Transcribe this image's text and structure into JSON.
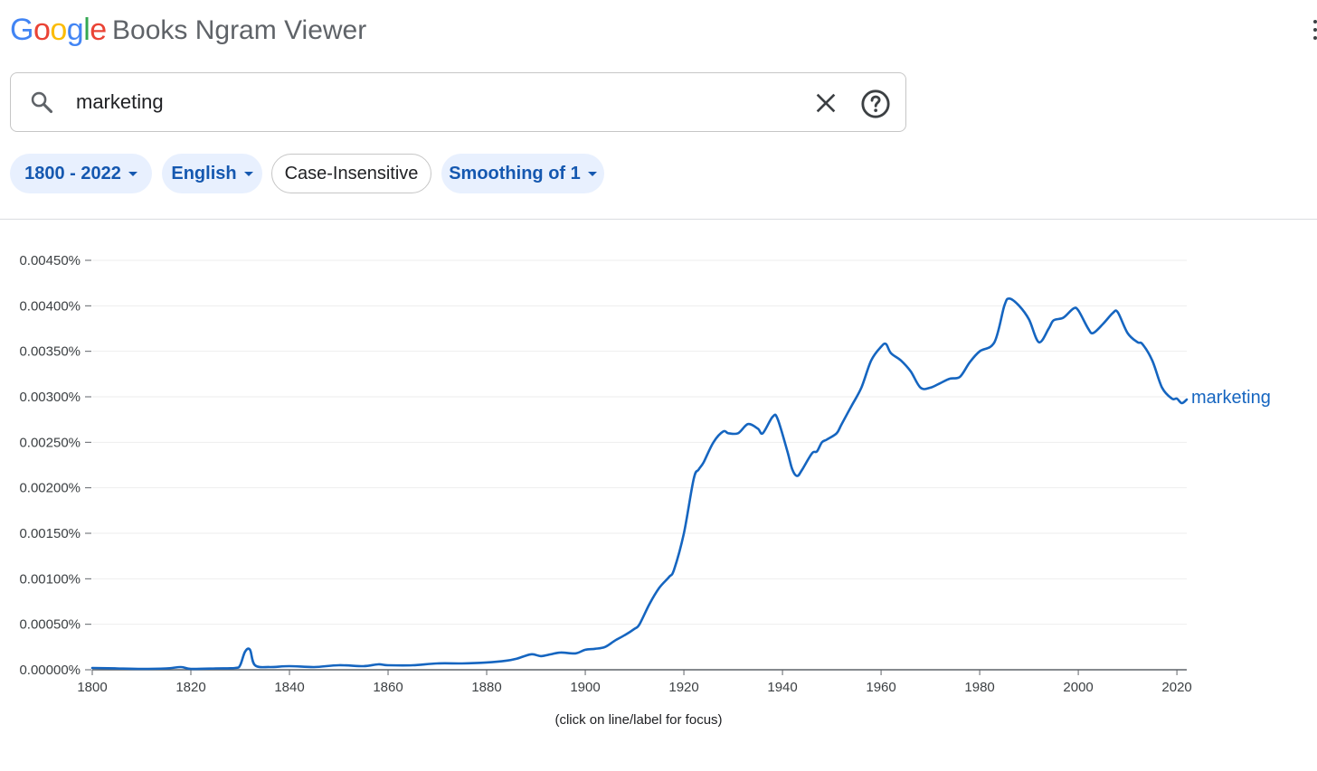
{
  "header": {
    "logo": [
      "G",
      "o",
      "o",
      "g",
      "l",
      "e"
    ],
    "logo_colors": [
      "#4285F4",
      "#EA4335",
      "#FBBC05",
      "#4285F4",
      "#34A853",
      "#EA4335"
    ],
    "product": "Books Ngram Viewer"
  },
  "search": {
    "value": "marketing",
    "placeholder": "",
    "icons": {
      "search": "search-icon",
      "clear": "close-icon",
      "help": "help-icon"
    }
  },
  "filters": {
    "years": "1800 - 2022",
    "language": "English",
    "case": "Case-Insensitive",
    "smoothing": "Smoothing of 1"
  },
  "colors": {
    "accent": "#1565c0",
    "chip_bg": "#e8f0fe",
    "chip_text": "#1558b0"
  },
  "chart_data": {
    "type": "line",
    "title": "",
    "xlabel": "",
    "ylabel": "",
    "xlim": [
      1800,
      2022
    ],
    "ylim": [
      0,
      0.0045
    ],
    "grid": true,
    "x_ticks": [
      "1800",
      "1820",
      "1840",
      "1860",
      "1880",
      "1900",
      "1920",
      "1940",
      "1960",
      "1980",
      "2000",
      "2020"
    ],
    "y_ticks": [
      "0.00000%",
      "0.00050%",
      "0.00100%",
      "0.00150%",
      "0.00200%",
      "0.00250%",
      "0.00300%",
      "0.00350%",
      "0.00400%",
      "0.00450%"
    ],
    "series": [
      {
        "name": "marketing",
        "color": "#1565c0",
        "points": [
          [
            1800,
            2e-05
          ],
          [
            1805,
            1.5e-05
          ],
          [
            1810,
            1e-05
          ],
          [
            1815,
            1.5e-05
          ],
          [
            1818,
            3e-05
          ],
          [
            1820,
            1e-05
          ],
          [
            1825,
            1.5e-05
          ],
          [
            1829,
            2e-05
          ],
          [
            1830,
            5e-05
          ],
          [
            1831,
            0.0002
          ],
          [
            1832,
            0.00022
          ],
          [
            1833,
            5e-05
          ],
          [
            1836,
            3e-05
          ],
          [
            1840,
            4e-05
          ],
          [
            1845,
            3e-05
          ],
          [
            1850,
            5e-05
          ],
          [
            1855,
            4e-05
          ],
          [
            1858,
            6e-05
          ],
          [
            1860,
            5e-05
          ],
          [
            1865,
            5e-05
          ],
          [
            1870,
            7e-05
          ],
          [
            1875,
            7e-05
          ],
          [
            1880,
            8e-05
          ],
          [
            1884,
            0.0001
          ],
          [
            1886,
            0.00012
          ],
          [
            1889,
            0.00017
          ],
          [
            1891,
            0.00015
          ],
          [
            1893,
            0.00017
          ],
          [
            1895,
            0.00019
          ],
          [
            1898,
            0.00018
          ],
          [
            1900,
            0.00022
          ],
          [
            1902,
            0.00023
          ],
          [
            1904,
            0.00025
          ],
          [
            1906,
            0.00032
          ],
          [
            1908,
            0.00038
          ],
          [
            1910,
            0.00045
          ],
          [
            1911,
            0.0005
          ],
          [
            1913,
            0.00072
          ],
          [
            1915,
            0.0009
          ],
          [
            1917,
            0.00102
          ],
          [
            1918,
            0.0011
          ],
          [
            1920,
            0.0015
          ],
          [
            1922,
            0.0021
          ],
          [
            1923,
            0.0022
          ],
          [
            1924,
            0.00228
          ],
          [
            1926,
            0.0025
          ],
          [
            1928,
            0.00262
          ],
          [
            1929,
            0.0026
          ],
          [
            1931,
            0.0026
          ],
          [
            1933,
            0.0027
          ],
          [
            1935,
            0.00265
          ],
          [
            1936,
            0.0026
          ],
          [
            1938,
            0.00278
          ],
          [
            1939,
            0.00276
          ],
          [
            1941,
            0.0024
          ],
          [
            1942,
            0.0022
          ],
          [
            1943,
            0.00213
          ],
          [
            1944,
            0.0022
          ],
          [
            1946,
            0.00238
          ],
          [
            1947,
            0.0024
          ],
          [
            1948,
            0.0025
          ],
          [
            1949,
            0.00253
          ],
          [
            1951,
            0.0026
          ],
          [
            1952,
            0.0027
          ],
          [
            1954,
            0.0029
          ],
          [
            1956,
            0.0031
          ],
          [
            1958,
            0.0034
          ],
          [
            1960,
            0.00355
          ],
          [
            1961,
            0.00358
          ],
          [
            1962,
            0.00348
          ],
          [
            1964,
            0.0034
          ],
          [
            1966,
            0.00328
          ],
          [
            1968,
            0.0031
          ],
          [
            1970,
            0.0031
          ],
          [
            1972,
            0.00315
          ],
          [
            1974,
            0.0032
          ],
          [
            1976,
            0.00322
          ],
          [
            1978,
            0.00338
          ],
          [
            1980,
            0.0035
          ],
          [
            1983,
            0.0036
          ],
          [
            1985,
            0.004
          ],
          [
            1986,
            0.00408
          ],
          [
            1988,
            0.004
          ],
          [
            1990,
            0.00385
          ],
          [
            1992,
            0.0036
          ],
          [
            1994,
            0.00375
          ],
          [
            1995,
            0.00384
          ],
          [
            1997,
            0.00387
          ],
          [
            1999,
            0.00397
          ],
          [
            2000,
            0.00395
          ],
          [
            2002,
            0.00375
          ],
          [
            2003,
            0.0037
          ],
          [
            2005,
            0.0038
          ],
          [
            2007,
            0.00392
          ],
          [
            2008,
            0.00393
          ],
          [
            2010,
            0.0037
          ],
          [
            2012,
            0.0036
          ],
          [
            2013,
            0.00358
          ],
          [
            2015,
            0.0034
          ],
          [
            2017,
            0.0031
          ],
          [
            2019,
            0.00298
          ],
          [
            2020,
            0.00298
          ],
          [
            2021,
            0.00293
          ],
          [
            2022,
            0.00297
          ]
        ]
      }
    ],
    "note": "(click on line/label for focus)"
  }
}
